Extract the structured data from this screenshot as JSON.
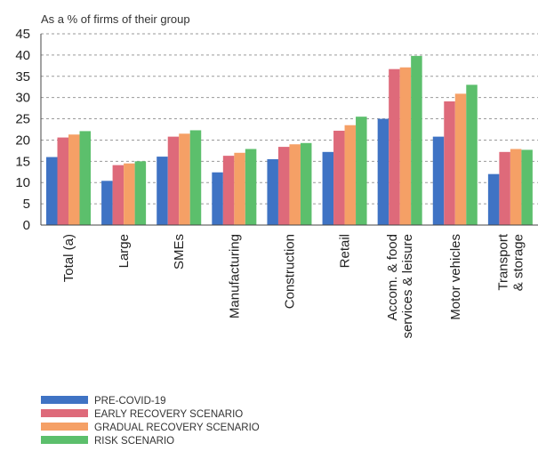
{
  "chart_data": {
    "type": "bar",
    "ylabel": "As a % of firms of their group",
    "ylim": [
      0,
      45
    ],
    "yticks": [
      0,
      5,
      10,
      15,
      20,
      25,
      30,
      35,
      40,
      45
    ],
    "grid": "horizontal-dashed",
    "legend_position": "bottom-left",
    "categories": [
      [
        "Total (a)"
      ],
      [
        "Large"
      ],
      [
        "SMEs"
      ],
      [
        "Manufacturing"
      ],
      [
        "Construction"
      ],
      [
        "Retail"
      ],
      [
        "Accom. & food",
        "services & leisure"
      ],
      [
        "Motor vehicles"
      ],
      [
        "Transport",
        "& storage"
      ]
    ],
    "series": [
      {
        "name": "PRE-COVID-19",
        "color": "#3f73c4",
        "values": [
          16.0,
          10.4,
          16.1,
          12.4,
          15.5,
          17.2,
          25.0,
          20.8,
          12.0
        ]
      },
      {
        "name": "EARLY RECOVERY SCENARIO",
        "color": "#de6a7a",
        "values": [
          20.6,
          14.1,
          20.8,
          16.3,
          18.4,
          22.2,
          36.7,
          29.1,
          17.2
        ]
      },
      {
        "name": "GRADUAL RECOVERY SCENARIO",
        "color": "#f5a066",
        "values": [
          21.3,
          14.5,
          21.5,
          17.0,
          19.0,
          23.5,
          37.1,
          30.9,
          17.9
        ]
      },
      {
        "name": "RISK SCENARIO",
        "color": "#5cbf6c",
        "values": [
          22.1,
          15.0,
          22.3,
          17.9,
          19.3,
          25.5,
          39.8,
          33.0,
          17.7
        ]
      }
    ]
  }
}
